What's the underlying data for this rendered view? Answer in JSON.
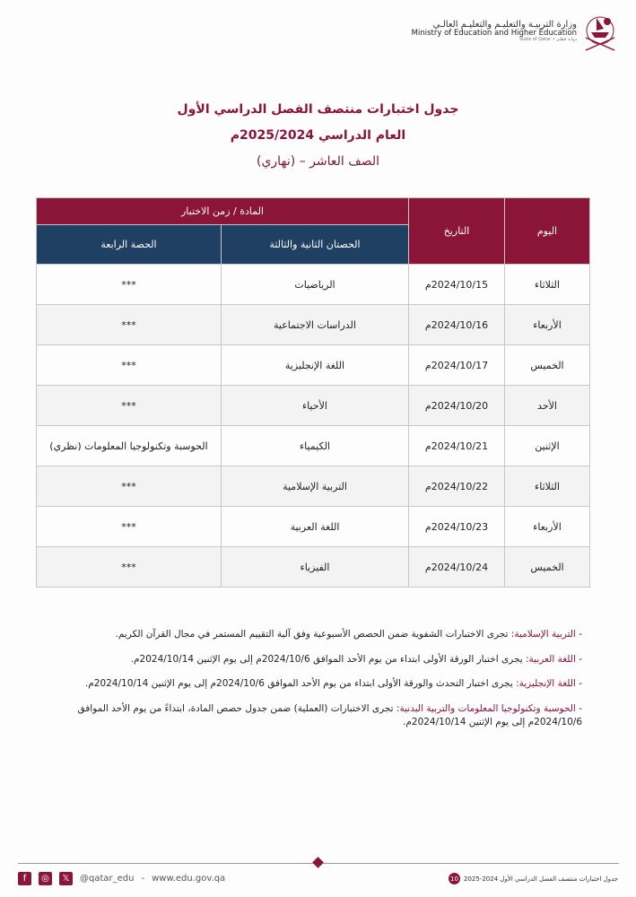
{
  "header": {
    "logo_ar": "وزارة التربيـة والتعليـم والتعليـم العالـي",
    "logo_en": "Ministry of Education and Higher Education",
    "logo_sub": "State of Qatar • دولـة قطـر"
  },
  "titles": [
    "جدول اختبارات منتصف الفصل الدراسي الأول",
    "العام الدراسي 2025/2024م",
    "الصف العاشر – (نهاري)"
  ],
  "table": {
    "headers": {
      "day": "اليوم",
      "date": "التاريخ",
      "subject_time": "المادة / زمن الاختبار",
      "sessions_2_3": "الحصتان الثانية والثالثة",
      "session_4": "الحصة الرابعة"
    },
    "rows": [
      {
        "day": "الثلاثاء",
        "date": "2024/10/15م",
        "s23": "الرياضيات",
        "s4": "***"
      },
      {
        "day": "الأربعاء",
        "date": "2024/10/16م",
        "s23": "الدراسات الاجتماعية",
        "s4": "***"
      },
      {
        "day": "الخميس",
        "date": "2024/10/17م",
        "s23": "اللغة الإنجليزية",
        "s4": "***"
      },
      {
        "day": "الأحد",
        "date": "2024/10/20م",
        "s23": "الأحياء",
        "s4": "***"
      },
      {
        "day": "الإثنين",
        "date": "2024/10/21م",
        "s23": "الكيمياء",
        "s4": "الحوسبة وتكنولوجيا المعلومات (نظري)"
      },
      {
        "day": "الثلاثاء",
        "date": "2024/10/22م",
        "s23": "التربية الإسلامية",
        "s4": "***"
      },
      {
        "day": "الأربعاء",
        "date": "2024/10/23م",
        "s23": "اللغة العربية",
        "s4": "***"
      },
      {
        "day": "الخميس",
        "date": "2024/10/24م",
        "s23": "الفيزياء",
        "s4": "***"
      }
    ]
  },
  "notes": [
    {
      "label": "التربية الإسلامية:",
      "text": " تجرى الاختبارات الشفوية ضمن الحصص الأسبوعية وفق آلية التقييم المستمر في مجال القرآن الكريم."
    },
    {
      "label": "اللغة العربية:",
      "text": " يجرى اختبار الورقة الأولى ابتداء من يوم الأحد الموافق 2024/10/6م إلى يوم الإثنين 2024/10/14م."
    },
    {
      "label": "اللغة الإنجليزية:",
      "text": " يجرى اختبار التحدث والورقة الأولى ابتداء من يوم الأحد الموافق 2024/10/6م إلى يوم الإثنين 2024/10/14م."
    },
    {
      "label": "الحوسبة وتكنولوجيا المعلومات والتربية البدنية:",
      "text": " تجرى الاختبارات (العملية) ضمن جدول حصص المادة، ابتداءً من يوم الأحد الموافق 2024/10/6م إلى يوم الإثنين 2024/10/14م."
    }
  ],
  "footer": {
    "handle": "@qatar_edu",
    "separator": "-",
    "website": "www.edu.gov.qa",
    "doc_title": "جدول اختبارات منتصف الفصل الدراسي الأول 2024-2025",
    "page": "10",
    "icons": [
      "facebook-icon",
      "instagram-icon",
      "x-icon"
    ]
  },
  "colors": {
    "maroon": "#8a1538",
    "navy": "#1f3f63"
  }
}
